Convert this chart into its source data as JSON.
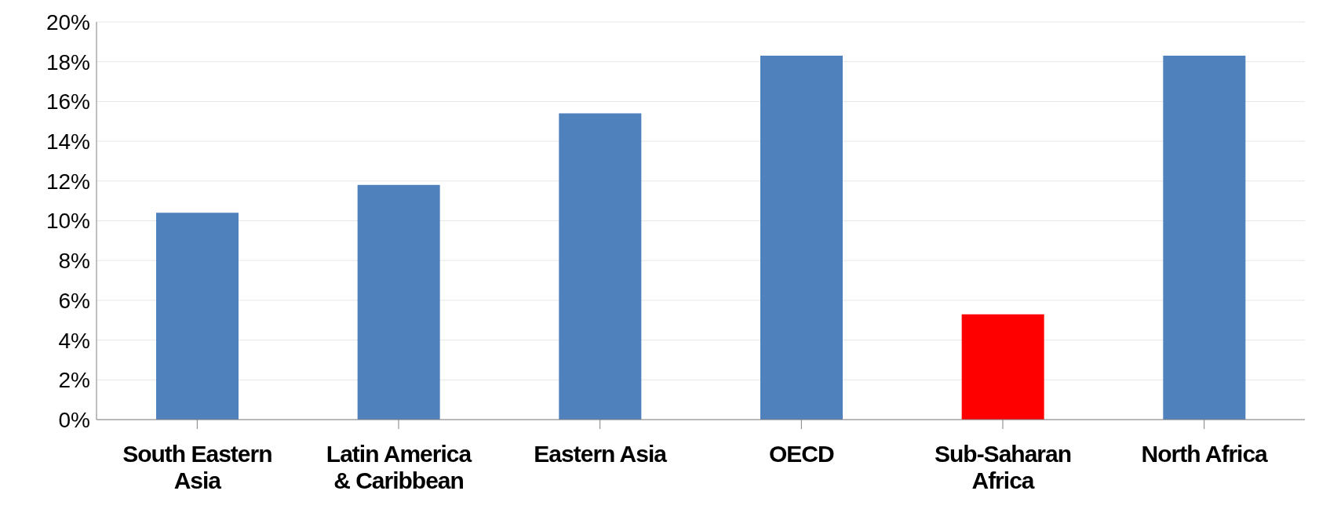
{
  "chart_data": {
    "type": "bar",
    "categories": [
      "South Eastern Asia",
      "Latin America & Caribbean",
      "Eastern Asia",
      "OECD",
      "Sub-Saharan Africa",
      "North Africa"
    ],
    "values": [
      10.4,
      11.8,
      15.4,
      18.3,
      5.3,
      18.3
    ],
    "colors": [
      "#4f81bd",
      "#4f81bd",
      "#4f81bd",
      "#4f81bd",
      "#ff0000",
      "#4f81bd"
    ],
    "ylim": [
      0,
      20
    ],
    "yticks": [
      {
        "value": 0,
        "label": "0%"
      },
      {
        "value": 2,
        "label": "2%"
      },
      {
        "value": 4,
        "label": "4%"
      },
      {
        "value": 6,
        "label": "6%"
      },
      {
        "value": 8,
        "label": "8%"
      },
      {
        "value": 10,
        "label": "10%"
      },
      {
        "value": 12,
        "label": "12%"
      },
      {
        "value": 14,
        "label": "14%"
      },
      {
        "value": 16,
        "label": "16%"
      },
      {
        "value": 18,
        "label": "18%"
      },
      {
        "value": 20,
        "label": "20%"
      }
    ],
    "grid": "y"
  }
}
